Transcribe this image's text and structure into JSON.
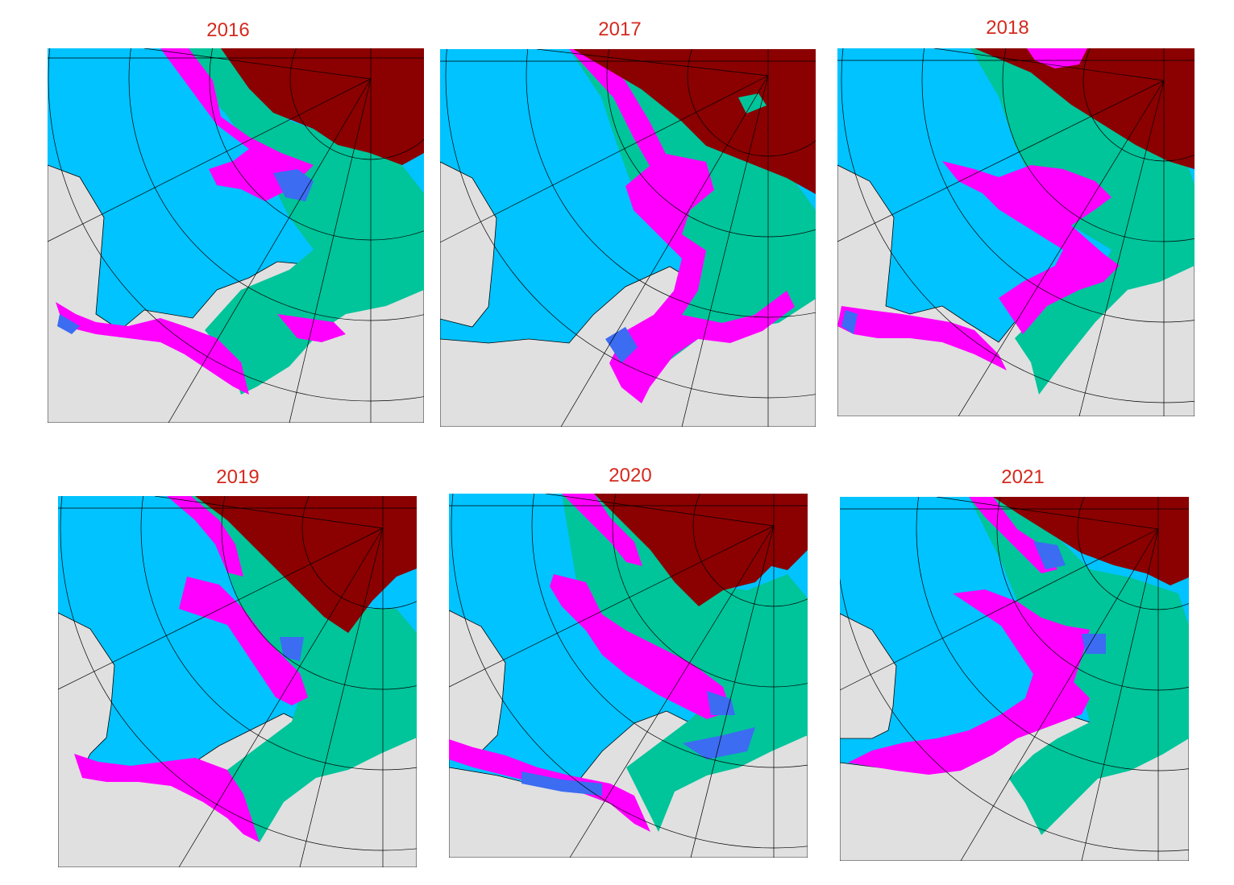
{
  "colors": {
    "open_water": "#00c3ff",
    "young_ice": "#3b6cf2",
    "first_year_ice": "#ff00ff",
    "medium_ice": "#00c49a",
    "multiyear_ice": "#8b0000",
    "land": "#e0e0e0",
    "grid": "#000000",
    "title": "#d42a1e"
  },
  "panels": [
    {
      "year": "2016"
    },
    {
      "year": "2017"
    },
    {
      "year": "2018"
    },
    {
      "year": "2019"
    },
    {
      "year": "2020"
    },
    {
      "year": "2021"
    }
  ]
}
